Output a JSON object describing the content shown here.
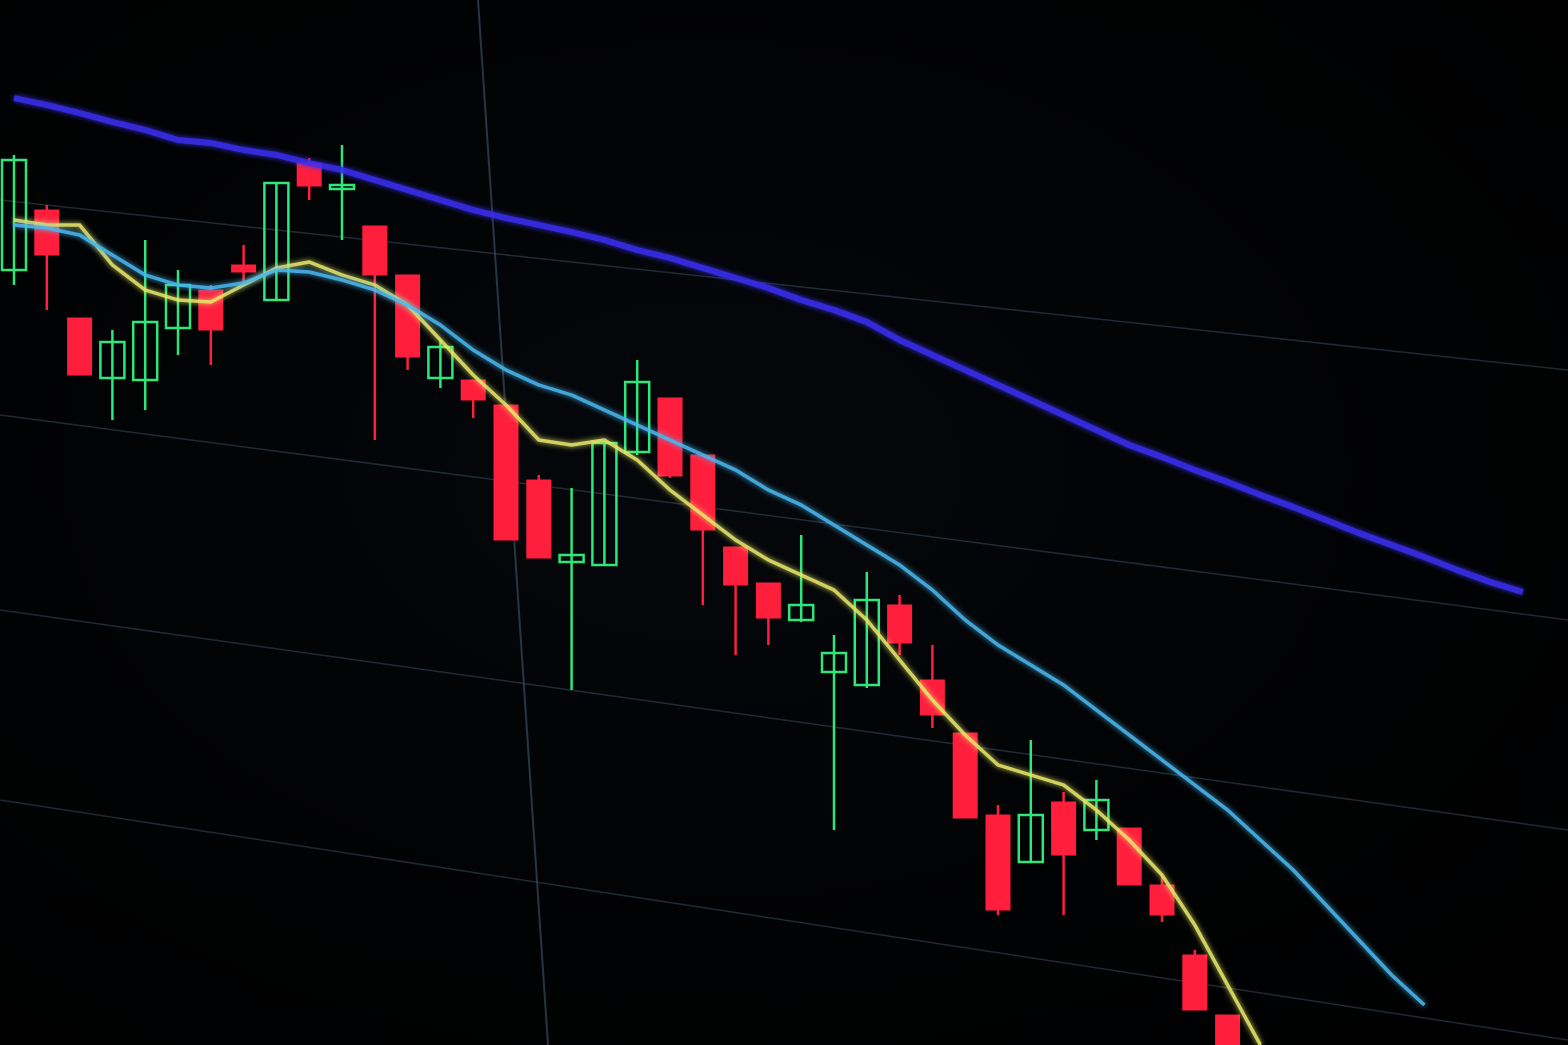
{
  "chart_data": {
    "type": "candlestick",
    "title": "",
    "xlabel": "",
    "ylabel": "",
    "grid": true,
    "ylim": [
      0,
      104.5
    ],
    "colors": {
      "up": "#2ee67a",
      "down": "#ff1f3d",
      "ma_yellow": "#e8e86a",
      "ma_cyan": "#4ab8f0",
      "ma_blue": "#3b2ff0",
      "grid": "#3a4a5a"
    },
    "candles": [
      {
        "o": 77.5,
        "h": 89,
        "l": 76,
        "c": 88.5
      },
      {
        "o": 83.5,
        "h": 84,
        "l": 73.5,
        "c": 79
      },
      {
        "o": 72.7,
        "h": 72.7,
        "l": 67,
        "c": 67
      },
      {
        "o": 66.7,
        "h": 71.5,
        "l": 62.5,
        "c": 70.3
      },
      {
        "o": 66.5,
        "h": 80.5,
        "l": 63.5,
        "c": 72.3
      },
      {
        "o": 71.7,
        "h": 77.5,
        "l": 69,
        "c": 76
      },
      {
        "o": 75.5,
        "h": 76,
        "l": 68,
        "c": 71.5
      },
      {
        "o": 78,
        "h": 80,
        "l": 76,
        "c": 77.3
      },
      {
        "o": 74.5,
        "h": 86.2,
        "l": 74.5,
        "c": 86.2
      },
      {
        "o": 88.2,
        "h": 88.7,
        "l": 84.5,
        "c": 85.9
      },
      {
        "o": 85.7,
        "h": 90,
        "l": 80.5,
        "c": 86
      },
      {
        "o": 81.9,
        "h": 81.9,
        "l": 60.5,
        "c": 77
      },
      {
        "o": 77,
        "h": 77,
        "l": 67.5,
        "c": 68.8
      },
      {
        "o": 66.7,
        "h": 70.5,
        "l": 65.7,
        "c": 69.8
      },
      {
        "o": 66.5,
        "h": 66.5,
        "l": 62.7,
        "c": 64.5
      },
      {
        "o": 64,
        "h": 64,
        "l": 50.5,
        "c": 50.5
      },
      {
        "o": 56.5,
        "h": 57,
        "l": 48.7,
        "c": 48.7
      },
      {
        "o": 48.3,
        "h": 55.7,
        "l": 35.5,
        "c": 49
      },
      {
        "o": 48,
        "h": 60.2,
        "l": 48,
        "c": 60.2
      },
      {
        "o": 59.3,
        "h": 68.5,
        "l": 59,
        "c": 66.3
      },
      {
        "o": 64.7,
        "h": 64.7,
        "l": 56.7,
        "c": 56.9
      },
      {
        "o": 59,
        "h": 59,
        "l": 44,
        "c": 51.5
      },
      {
        "o": 49.8,
        "h": 49.8,
        "l": 39,
        "c": 46
      },
      {
        "o": 46.2,
        "h": 46.2,
        "l": 40,
        "c": 42.7
      },
      {
        "o": 42.5,
        "h": 51,
        "l": 42.3,
        "c": 44
      },
      {
        "o": 37.3,
        "h": 41,
        "l": 21.5,
        "c": 39.2
      },
      {
        "o": 36,
        "h": 47.3,
        "l": 35.7,
        "c": 44.5
      },
      {
        "o": 44,
        "h": 45,
        "l": 39,
        "c": 40.2
      },
      {
        "o": 36.5,
        "h": 40,
        "l": 31.7,
        "c": 33
      },
      {
        "o": 31.2,
        "h": 31.2,
        "l": 22.7,
        "c": 22.7
      },
      {
        "o": 23,
        "h": 24,
        "l": 13,
        "c": 13.5
      },
      {
        "o": 18.3,
        "h": 30.5,
        "l": 18.3,
        "c": 23
      },
      {
        "o": 24.3,
        "h": 25.3,
        "l": 13,
        "c": 19
      },
      {
        "o": 21.5,
        "h": 26.5,
        "l": 20.5,
        "c": 24.5
      },
      {
        "o": 21.7,
        "h": 21.7,
        "l": 16,
        "c": 16
      },
      {
        "o": 16,
        "h": 17,
        "l": 12.3,
        "c": 13
      },
      {
        "o": 9,
        "h": 9.5,
        "l": 3.5,
        "c": 3.5
      },
      {
        "o": 3,
        "h": 3,
        "l": 0,
        "c": 0
      }
    ],
    "series": [
      {
        "color": "#e8e86a",
        "values": [
          82.5,
          82,
          82,
          78,
          75.5,
          74.5,
          74.3,
          76,
          77.7,
          78.3,
          77,
          76,
          74,
          70.5,
          67,
          64,
          60.5,
          60,
          60.5,
          58.5,
          55.5,
          53,
          50.5,
          48.5,
          47,
          45.5,
          42.5,
          38.5,
          34.5,
          31,
          28,
          27,
          26,
          23.5,
          20.5,
          17,
          12,
          6,
          0
        ]
      },
      {
        "color": "#4ab8f0",
        "values": [
          82,
          81.7,
          81,
          79,
          77,
          76,
          75.7,
          76.2,
          77.5,
          77.3,
          76.5,
          75.5,
          74,
          72,
          69.5,
          67.5,
          66,
          65,
          63.5,
          62,
          60.5,
          59,
          57.5,
          55.5,
          54,
          52,
          50,
          48,
          45.5,
          42.5,
          40,
          38,
          36,
          33.5,
          31,
          28.5,
          26,
          23.5,
          20.5,
          17.5,
          14,
          10.5,
          7,
          4
        ]
      },
      {
        "color": "#3b2ff0",
        "values": [
          94.7,
          94,
          93.2,
          92.3,
          91.5,
          90.5,
          90.2,
          89.5,
          89,
          88.2,
          87.5,
          86.5,
          85.5,
          84.5,
          83.5,
          82.7,
          82,
          81.3,
          80.5,
          79.5,
          78.7,
          77.7,
          76.7,
          75.7,
          74.5,
          73.5,
          72.3,
          70.5,
          69,
          67.5,
          66,
          64.5,
          63,
          61.5,
          60,
          58.8,
          57.5,
          56.3,
          55,
          53.8,
          52.5,
          51.2,
          50,
          48.8,
          47.5,
          46.3,
          45.3
        ]
      }
    ]
  }
}
